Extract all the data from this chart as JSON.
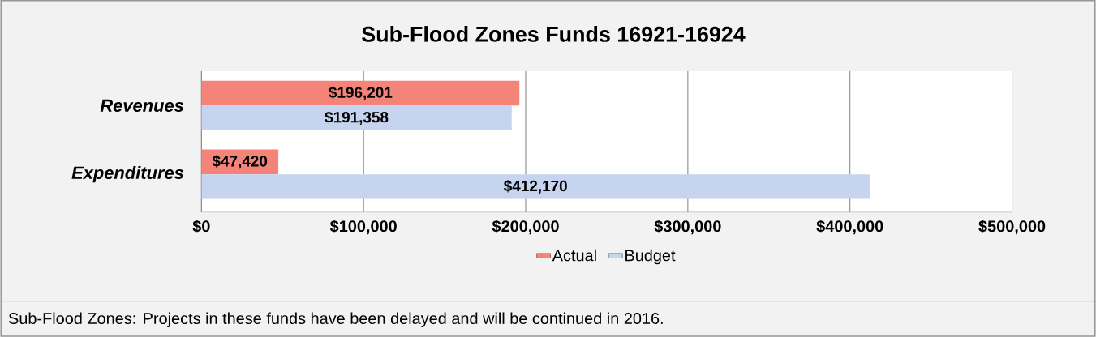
{
  "chart_data": {
    "type": "bar",
    "orientation": "horizontal",
    "title": "Sub-Flood Zones Funds 16921-16924",
    "categories": [
      "Revenues",
      "Expenditures"
    ],
    "series": [
      {
        "name": "Actual",
        "color": "#f4847a",
        "values": [
          196201,
          47420
        ],
        "value_labels": [
          "$196,201",
          "$47,420"
        ]
      },
      {
        "name": "Budget",
        "color": "#c6d4f0",
        "values": [
          191358,
          412170
        ],
        "value_labels": [
          "$191,358",
          "$412,170"
        ]
      }
    ],
    "xlim": [
      0,
      500000
    ],
    "xticks": [
      {
        "value": 0,
        "label": "$0"
      },
      {
        "value": 100000,
        "label": "$100,000"
      },
      {
        "value": 200000,
        "label": "$200,000"
      },
      {
        "value": 300000,
        "label": "$300,000"
      },
      {
        "value": 400000,
        "label": "$400,000"
      },
      {
        "value": 500000,
        "label": "$500,000"
      }
    ],
    "grid": "x",
    "legend": "bottom",
    "annotations": [
      "Sub-Flood Zones: Projects in these funds have been delayed and will be continued in 2016."
    ]
  }
}
